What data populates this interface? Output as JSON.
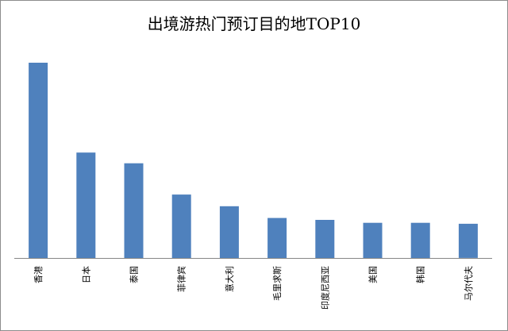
{
  "chart_data": {
    "type": "bar",
    "title": "出境游热门预订目的地TOP10",
    "xlabel": "",
    "ylabel": "",
    "categories": [
      "香港",
      "日本",
      "泰国",
      "菲律宾",
      "意大利",
      "毛里求斯",
      "印度尼西亚",
      "美国",
      "韩国",
      "马尔代夫"
    ],
    "values": [
      100,
      54,
      48.5,
      32.5,
      26.5,
      20.5,
      19.5,
      18,
      18,
      17.5
    ],
    "ylim": [
      0,
      100
    ],
    "grid": false,
    "legend": "none",
    "bar_color": "#4f81bd",
    "axis_color": "#868686"
  }
}
